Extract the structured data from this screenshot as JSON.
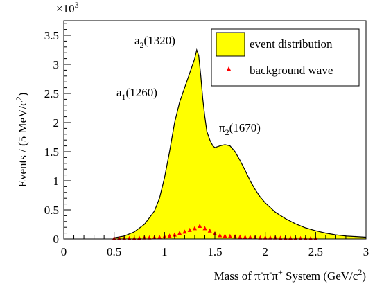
{
  "chart_data": {
    "type": "area",
    "xlabel": "Mass of π⁻π⁻π⁺ System (GeV/c²)",
    "xlabel_parts": {
      "pre": "Mass of π",
      "m1": "-",
      "pi2": "π",
      "m2": "-",
      "pi3": "π",
      "p": "+",
      "post": " System (GeV/c",
      "sq": "2",
      "close": ")"
    },
    "ylabel": "Events / (5 MeV/c²)",
    "ylabel_parts": {
      "pre": "Events / (5 MeV/c",
      "sq": "2",
      "close": ")"
    },
    "y_multiplier": "×10",
    "y_multiplier_exp": "3",
    "xlim": [
      0,
      3
    ],
    "ylim": [
      0,
      3.75
    ],
    "x_ticks": [
      "0",
      "0.5",
      "1",
      "1.5",
      "2",
      "2.5",
      "3"
    ],
    "y_ticks": [
      "0",
      "0.5",
      "1",
      "1.5",
      "2",
      "2.5",
      "3",
      "3.5"
    ],
    "legend": {
      "position": "top-right",
      "entries": [
        "event distribution",
        "background wave"
      ]
    },
    "annotations": [
      {
        "base": "a",
        "sub": "2",
        "rest": "(1320)",
        "x": 1.32
      },
      {
        "base": "a",
        "sub": "1",
        "rest": "(1260)",
        "x": 1.23
      },
      {
        "base": "π",
        "sub": "2",
        "rest": "(1670)",
        "x": 1.67
      }
    ],
    "series": [
      {
        "name": "event distribution",
        "color": "#ffff00",
        "style": "filled-histogram",
        "x": [
          0.5,
          0.6,
          0.7,
          0.8,
          0.9,
          0.95,
          1.0,
          1.05,
          1.1,
          1.15,
          1.2,
          1.22,
          1.25,
          1.28,
          1.3,
          1.32,
          1.34,
          1.36,
          1.38,
          1.4,
          1.42,
          1.45,
          1.48,
          1.5,
          1.55,
          1.6,
          1.65,
          1.7,
          1.75,
          1.8,
          1.85,
          1.9,
          1.95,
          2.0,
          2.1,
          2.2,
          2.3,
          2.4,
          2.5,
          2.6,
          2.7,
          2.8,
          2.9,
          3.0
        ],
        "values": [
          0.02,
          0.05,
          0.12,
          0.25,
          0.48,
          0.7,
          1.05,
          1.5,
          2.0,
          2.35,
          2.6,
          2.7,
          2.85,
          3.0,
          3.1,
          3.25,
          3.15,
          2.8,
          2.4,
          2.1,
          1.85,
          1.7,
          1.6,
          1.57,
          1.6,
          1.62,
          1.6,
          1.5,
          1.35,
          1.18,
          1.0,
          0.85,
          0.72,
          0.62,
          0.46,
          0.35,
          0.26,
          0.19,
          0.14,
          0.1,
          0.07,
          0.05,
          0.04,
          0.03
        ]
      },
      {
        "name": "background wave",
        "color": "#ff0000",
        "style": "triangle-markers",
        "x": [
          0.5,
          0.55,
          0.6,
          0.65,
          0.7,
          0.75,
          0.8,
          0.85,
          0.9,
          0.95,
          1.0,
          1.05,
          1.1,
          1.15,
          1.2,
          1.25,
          1.3,
          1.35,
          1.4,
          1.45,
          1.5,
          1.55,
          1.6,
          1.65,
          1.7,
          1.75,
          1.8,
          1.85,
          1.9,
          1.95,
          2.0,
          2.05,
          2.1,
          2.15,
          2.2,
          2.25,
          2.3,
          2.35,
          2.4,
          2.45,
          2.5
        ],
        "values": [
          0.01,
          0.01,
          0.01,
          0.01,
          0.01,
          0.015,
          0.02,
          0.02,
          0.025,
          0.03,
          0.04,
          0.05,
          0.07,
          0.1,
          0.12,
          0.15,
          0.18,
          0.22,
          0.18,
          0.14,
          0.09,
          0.06,
          0.05,
          0.045,
          0.04,
          0.035,
          0.03,
          0.03,
          0.025,
          0.02,
          0.02,
          0.02,
          0.02,
          0.015,
          0.015,
          0.015,
          0.01,
          0.01,
          0.01,
          0.01,
          0.01
        ]
      }
    ]
  }
}
